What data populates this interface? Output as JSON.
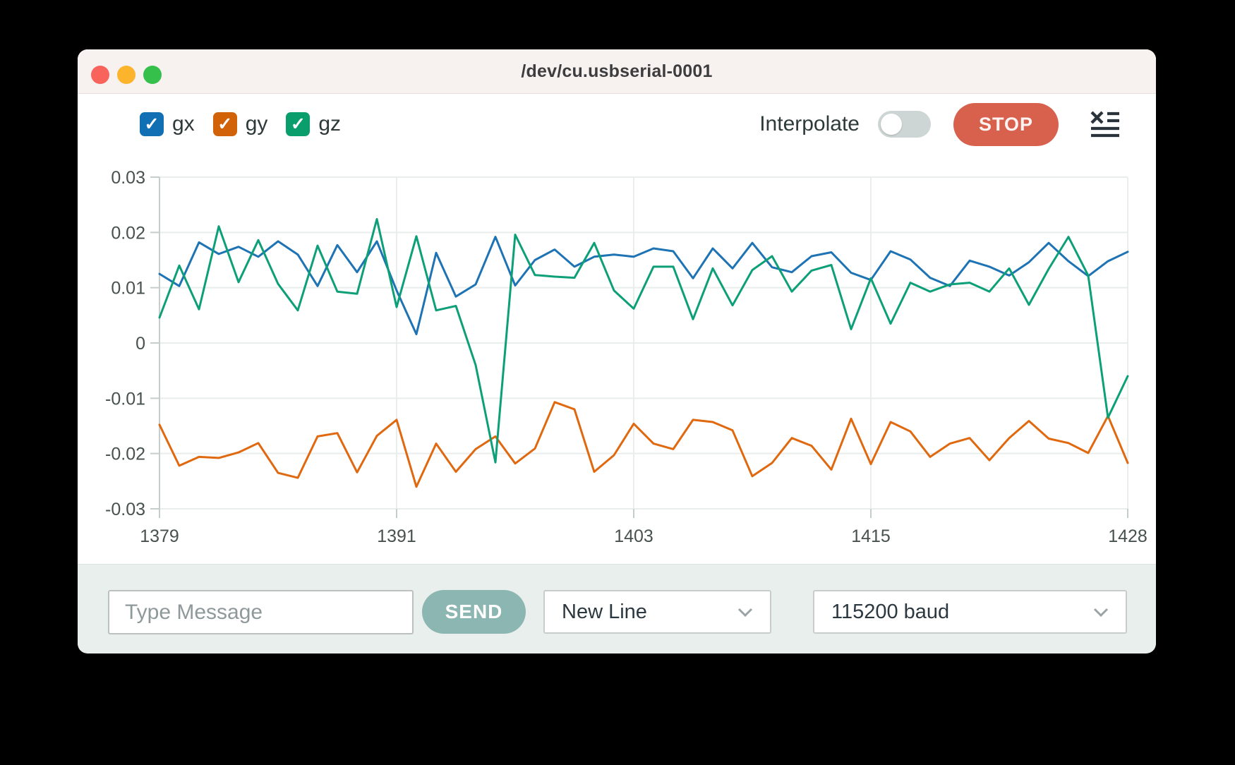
{
  "window": {
    "title": "/dev/cu.usbserial-0001"
  },
  "traffic_lights": [
    "close",
    "minimize",
    "zoom"
  ],
  "header": {
    "legend": [
      {
        "label": "gx",
        "color": "#1170b4",
        "checked": true
      },
      {
        "label": "gy",
        "color": "#d26208",
        "checked": true
      },
      {
        "label": "gz",
        "color": "#0a9e6c",
        "checked": true
      }
    ],
    "check_glyph": "✓",
    "interpolate_label": "Interpolate",
    "interpolate_on": false,
    "stop_label": "STOP",
    "stop_color": "#d8614e"
  },
  "chart_data": {
    "type": "line",
    "title": "",
    "xlabel": "",
    "ylabel": "",
    "xlim": [
      1379,
      1428
    ],
    "ylim": [
      -0.03,
      0.03
    ],
    "grid": true,
    "legend_position": "top-left",
    "xticks": [
      {
        "v": 1379,
        "label": "1379"
      },
      {
        "v": 1391,
        "label": "1391"
      },
      {
        "v": 1403,
        "label": "1403"
      },
      {
        "v": 1415,
        "label": "1415"
      },
      {
        "v": 1428,
        "label": "1428"
      }
    ],
    "yticks": [
      {
        "v": 0.03,
        "label": "0.03"
      },
      {
        "v": 0.02,
        "label": "0.02"
      },
      {
        "v": 0.01,
        "label": "0.01"
      },
      {
        "v": 0,
        "label": "0"
      },
      {
        "v": -0.01,
        "label": "-0.01"
      },
      {
        "v": -0.02,
        "label": "-0.02"
      },
      {
        "v": -0.03,
        "label": "-0.03"
      }
    ],
    "x": [
      1379,
      1380,
      1381,
      1382,
      1383,
      1384,
      1385,
      1386,
      1387,
      1388,
      1389,
      1390,
      1391,
      1392,
      1393,
      1394,
      1395,
      1396,
      1397,
      1398,
      1399,
      1400,
      1401,
      1402,
      1403,
      1404,
      1405,
      1406,
      1407,
      1408,
      1409,
      1410,
      1411,
      1412,
      1413,
      1414,
      1415,
      1416,
      1417,
      1418,
      1419,
      1420,
      1421,
      1422,
      1423,
      1424,
      1425,
      1426,
      1427,
      1428
    ],
    "series": [
      {
        "name": "gx",
        "color": "#1d73b3",
        "values": [
          0.0125,
          0.0103,
          0.0182,
          0.0161,
          0.0174,
          0.0156,
          0.0184,
          0.016,
          0.0103,
          0.0177,
          0.0128,
          0.0184,
          0.0095,
          0.0016,
          0.0163,
          0.0084,
          0.0106,
          0.0192,
          0.0104,
          0.015,
          0.0169,
          0.0138,
          0.0156,
          0.016,
          0.0156,
          0.0171,
          0.0166,
          0.0117,
          0.0171,
          0.0135,
          0.0181,
          0.0137,
          0.0128,
          0.0157,
          0.0164,
          0.0127,
          0.0114,
          0.0166,
          0.0151,
          0.0118,
          0.0103,
          0.0149,
          0.0138,
          0.0122,
          0.0146,
          0.0181,
          0.0148,
          0.0121,
          0.0148,
          0.0165
        ]
      },
      {
        "name": "gy",
        "color": "#e0680f",
        "values": [
          -0.0148,
          -0.0222,
          -0.0206,
          -0.0208,
          -0.0198,
          -0.0181,
          -0.0235,
          -0.0244,
          -0.0169,
          -0.0163,
          -0.0234,
          -0.0168,
          -0.0139,
          -0.026,
          -0.0182,
          -0.0233,
          -0.0192,
          -0.0169,
          -0.0218,
          -0.0191,
          -0.0107,
          -0.012,
          -0.0233,
          -0.0203,
          -0.0146,
          -0.0182,
          -0.0192,
          -0.0139,
          -0.0143,
          -0.0158,
          -0.0241,
          -0.0217,
          -0.0172,
          -0.0186,
          -0.0229,
          -0.0137,
          -0.0219,
          -0.0143,
          -0.016,
          -0.0206,
          -0.0182,
          -0.0172,
          -0.0212,
          -0.0172,
          -0.0141,
          -0.0173,
          -0.0181,
          -0.0199,
          -0.0132,
          -0.0217
        ]
      },
      {
        "name": "gz",
        "color": "#0d9f78",
        "values": [
          0.0046,
          0.014,
          0.0061,
          0.0211,
          0.011,
          0.0186,
          0.0107,
          0.0059,
          0.0176,
          0.0093,
          0.0089,
          0.0224,
          0.0065,
          0.0193,
          0.0059,
          0.0067,
          -0.004,
          -0.0216,
          0.0196,
          0.0123,
          0.012,
          0.0118,
          0.0181,
          0.0095,
          0.0062,
          0.0138,
          0.0138,
          0.0043,
          0.0135,
          0.0068,
          0.0132,
          0.0157,
          0.0093,
          0.0131,
          0.0141,
          0.0025,
          0.0117,
          0.0035,
          0.0109,
          0.0093,
          0.0106,
          0.0109,
          0.0093,
          0.0135,
          0.0069,
          0.0134,
          0.0192,
          0.0122,
          -0.0135,
          -0.006
        ]
      }
    ]
  },
  "footer": {
    "message_placeholder": "Type Message",
    "send_label": "SEND",
    "line_ending": "New Line",
    "baud": "115200 baud"
  }
}
